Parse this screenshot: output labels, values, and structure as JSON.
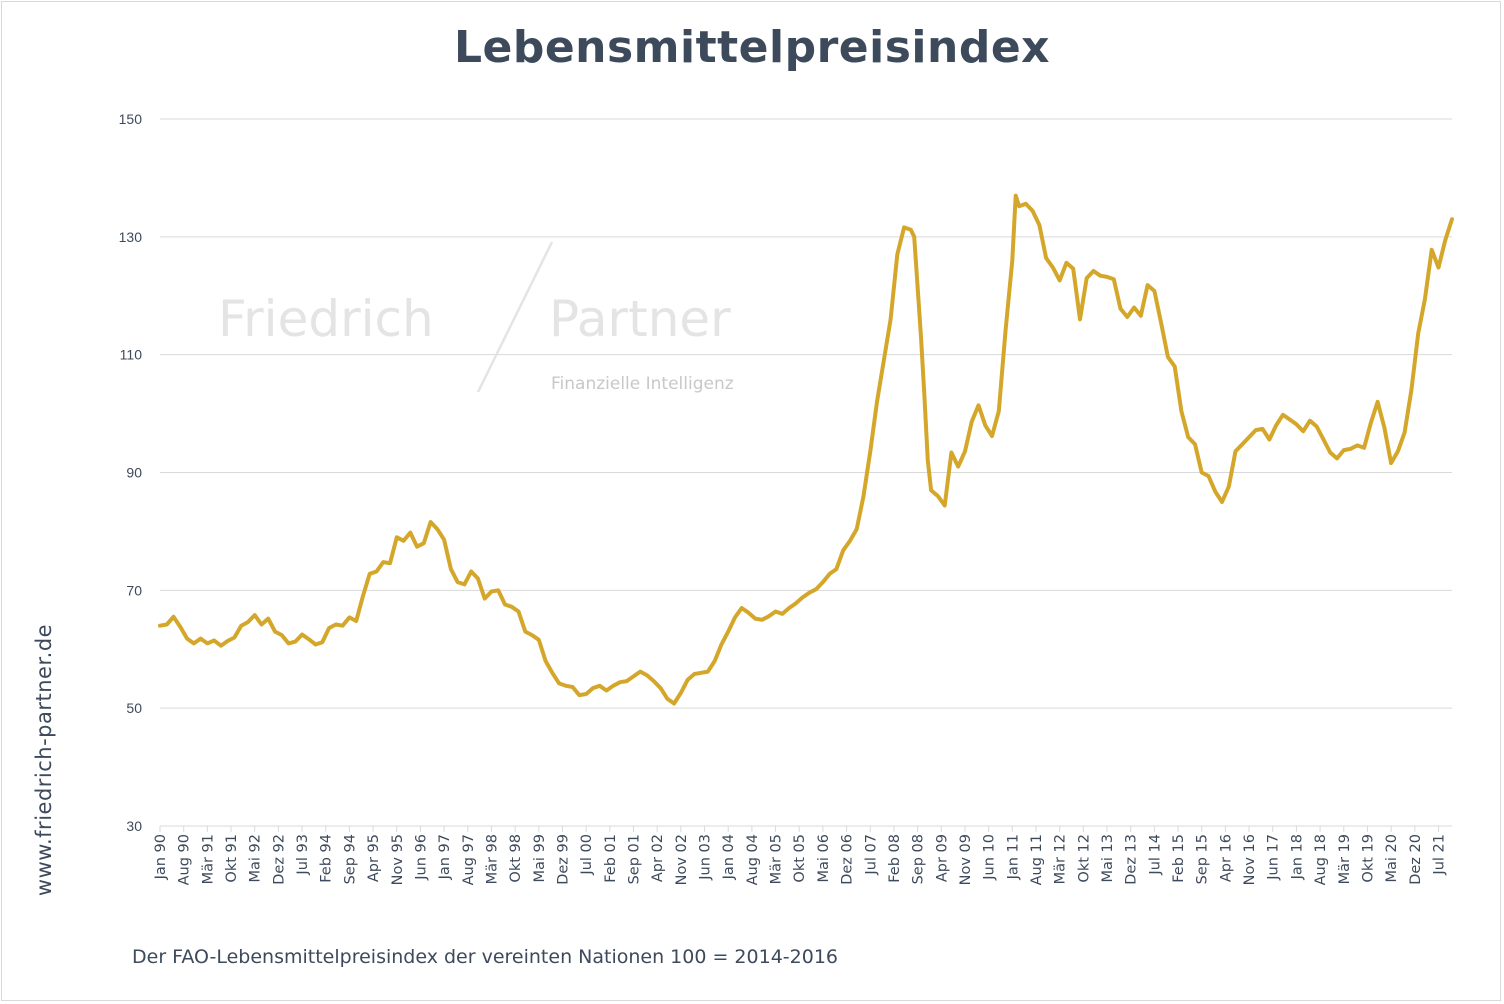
{
  "title": "Lebensmittelpreisindex",
  "side_url": "www.friedrich-partner.de",
  "footnote": "Der FAO-Lebensmittelpreisindex der vereinten Nationen 100 = 2014-2016",
  "watermark": {
    "name_left": "Friedrich",
    "name_right": "Partner",
    "tagline": "Finanzielle Intelligenz"
  },
  "colors": {
    "line": "#d4a62a",
    "grid": "#d9d9d9",
    "text": "#3d4a5c"
  },
  "chart_data": {
    "type": "line",
    "title": "Lebensmittelpreisindex",
    "xlabel": "",
    "ylabel": "",
    "ylim": [
      30,
      150
    ],
    "yticks": [
      30,
      50,
      70,
      90,
      110,
      130,
      150
    ],
    "grid": "horizontal",
    "x_start": "1990-01",
    "x_end": "2021-11",
    "x_tick_labels": [
      "Jan 90",
      "Aug 90",
      "Mär 91",
      "Okt 91",
      "Mai 92",
      "Dez 92",
      "Jul 93",
      "Feb 94",
      "Sep 94",
      "Apr 95",
      "Nov 95",
      "Jun 96",
      "Jan 97",
      "Aug 97",
      "Mär 98",
      "Okt 98",
      "Mai 99",
      "Dez 99",
      "Jul 00",
      "Feb 01",
      "Sep 01",
      "Apr 02",
      "Nov 02",
      "Jun 03",
      "Jan 04",
      "Aug 04",
      "Mär 05",
      "Okt 05",
      "Mai 06",
      "Dez 06",
      "Jul 07",
      "Feb 08",
      "Sep 08",
      "Apr 09",
      "Nov 09",
      "Jun 10",
      "Jan 11",
      "Aug 11",
      "Mär 12",
      "Okt 12",
      "Mai 13",
      "Dez 13",
      "Jul 14",
      "Feb 15",
      "Sep 15",
      "Apr 16",
      "Nov 16",
      "Jun 17",
      "Jan 18",
      "Aug 18",
      "Mär 19",
      "Okt 19",
      "Mai 20",
      "Dez 20",
      "Jul 21"
    ],
    "series": [
      {
        "points": [
          [
            "1990-01",
            64
          ],
          [
            "1990-03",
            64.2
          ],
          [
            "1990-05",
            65.5
          ],
          [
            "1990-07",
            63.8
          ],
          [
            "1990-09",
            61.8
          ],
          [
            "1990-11",
            61.0
          ],
          [
            "1991-01",
            61.8
          ],
          [
            "1991-03",
            61.0
          ],
          [
            "1991-05",
            61.5
          ],
          [
            "1991-07",
            60.6
          ],
          [
            "1991-09",
            61.4
          ],
          [
            "1991-11",
            62.0
          ],
          [
            "1992-01",
            64.0
          ],
          [
            "1992-03",
            64.6
          ],
          [
            "1992-05",
            65.8
          ],
          [
            "1992-07",
            64.2
          ],
          [
            "1992-09",
            65.2
          ],
          [
            "1992-11",
            63.0
          ],
          [
            "1993-01",
            62.4
          ],
          [
            "1993-03",
            61.0
          ],
          [
            "1993-05",
            61.3
          ],
          [
            "1993-07",
            62.5
          ],
          [
            "1993-09",
            61.7
          ],
          [
            "1993-11",
            60.8
          ],
          [
            "1994-01",
            61.2
          ],
          [
            "1994-03",
            63.6
          ],
          [
            "1994-05",
            64.2
          ],
          [
            "1994-07",
            64.0
          ],
          [
            "1994-09",
            65.4
          ],
          [
            "1994-11",
            64.8
          ],
          [
            "1995-01",
            69.0
          ],
          [
            "1995-03",
            72.8
          ],
          [
            "1995-05",
            73.2
          ],
          [
            "1995-07",
            74.8
          ],
          [
            "1995-09",
            74.6
          ],
          [
            "1995-11",
            79.0
          ],
          [
            "1996-01",
            78.4
          ],
          [
            "1996-03",
            79.8
          ],
          [
            "1996-05",
            77.4
          ],
          [
            "1996-07",
            78.0
          ],
          [
            "1996-09",
            81.6
          ],
          [
            "1996-11",
            80.4
          ],
          [
            "1997-01",
            78.6
          ],
          [
            "1997-03",
            73.6
          ],
          [
            "1997-05",
            71.4
          ],
          [
            "1997-07",
            71.0
          ],
          [
            "1997-09",
            73.2
          ],
          [
            "1997-11",
            72.0
          ],
          [
            "1998-01",
            68.6
          ],
          [
            "1998-03",
            69.8
          ],
          [
            "1998-05",
            70.0
          ],
          [
            "1998-07",
            67.6
          ],
          [
            "1998-09",
            67.2
          ],
          [
            "1998-11",
            66.4
          ],
          [
            "1999-01",
            63.0
          ],
          [
            "1999-03",
            62.4
          ],
          [
            "1999-05",
            61.6
          ],
          [
            "1999-07",
            58.0
          ],
          [
            "1999-09",
            56.0
          ],
          [
            "1999-11",
            54.2
          ],
          [
            "2000-01",
            53.8
          ],
          [
            "2000-03",
            53.6
          ],
          [
            "2000-05",
            52.2
          ],
          [
            "2000-07",
            52.4
          ],
          [
            "2000-09",
            53.4
          ],
          [
            "2000-11",
            53.8
          ],
          [
            "2001-01",
            53.0
          ],
          [
            "2001-03",
            53.8
          ],
          [
            "2001-05",
            54.4
          ],
          [
            "2001-07",
            54.6
          ],
          [
            "2001-09",
            55.4
          ],
          [
            "2001-11",
            56.2
          ],
          [
            "2002-01",
            55.6
          ],
          [
            "2002-03",
            54.6
          ],
          [
            "2002-05",
            53.4
          ],
          [
            "2002-07",
            51.6
          ],
          [
            "2002-09",
            50.8
          ],
          [
            "2002-11",
            52.6
          ],
          [
            "2003-01",
            54.8
          ],
          [
            "2003-03",
            55.8
          ],
          [
            "2003-05",
            56.0
          ],
          [
            "2003-07",
            56.2
          ],
          [
            "2003-09",
            58.0
          ],
          [
            "2003-11",
            60.8
          ],
          [
            "2004-01",
            63.0
          ],
          [
            "2004-03",
            65.4
          ],
          [
            "2004-05",
            67.0
          ],
          [
            "2004-07",
            66.2
          ],
          [
            "2004-09",
            65.2
          ],
          [
            "2004-11",
            65.0
          ],
          [
            "2005-01",
            65.6
          ],
          [
            "2005-03",
            66.4
          ],
          [
            "2005-05",
            66.0
          ],
          [
            "2005-07",
            67.0
          ],
          [
            "2005-09",
            67.8
          ],
          [
            "2005-11",
            68.8
          ],
          [
            "2006-01",
            69.6
          ],
          [
            "2006-03",
            70.2
          ],
          [
            "2006-05",
            71.4
          ],
          [
            "2006-07",
            72.8
          ],
          [
            "2006-09",
            73.6
          ],
          [
            "2006-11",
            76.8
          ],
          [
            "2007-01",
            78.4
          ],
          [
            "2007-03",
            80.4
          ],
          [
            "2007-05",
            86.0
          ],
          [
            "2007-07",
            93.6
          ],
          [
            "2007-09",
            102.0
          ],
          [
            "2007-11",
            109.0
          ],
          [
            "2008-01",
            116.0
          ],
          [
            "2008-03",
            127.0
          ],
          [
            "2008-05",
            131.6
          ],
          [
            "2008-07",
            131.2
          ],
          [
            "2008-08",
            130.0
          ],
          [
            "2008-10",
            113.0
          ],
          [
            "2008-11",
            103.0
          ],
          [
            "2008-12",
            92.0
          ],
          [
            "2009-01",
            87.0
          ],
          [
            "2009-03",
            86.0
          ],
          [
            "2009-05",
            84.4
          ],
          [
            "2009-07",
            93.4
          ],
          [
            "2009-09",
            91.0
          ],
          [
            "2009-11",
            93.6
          ],
          [
            "2010-01",
            98.6
          ],
          [
            "2010-03",
            101.4
          ],
          [
            "2010-05",
            98.0
          ],
          [
            "2010-07",
            96.2
          ],
          [
            "2010-09",
            100.4
          ],
          [
            "2010-11",
            114.0
          ],
          [
            "2011-01",
            126.0
          ],
          [
            "2011-02",
            137.0
          ],
          [
            "2011-03",
            135.2
          ],
          [
            "2011-05",
            135.6
          ],
          [
            "2011-07",
            134.4
          ],
          [
            "2011-09",
            132.0
          ],
          [
            "2011-11",
            126.4
          ],
          [
            "2012-01",
            124.8
          ],
          [
            "2012-03",
            122.6
          ],
          [
            "2012-05",
            125.6
          ],
          [
            "2012-07",
            124.6
          ],
          [
            "2012-09",
            116.0
          ],
          [
            "2012-11",
            123.0
          ],
          [
            "2013-01",
            124.2
          ],
          [
            "2013-03",
            123.4
          ],
          [
            "2013-05",
            123.2
          ],
          [
            "2013-07",
            122.8
          ],
          [
            "2013-09",
            117.8
          ],
          [
            "2013-11",
            116.4
          ],
          [
            "2014-01",
            118.0
          ],
          [
            "2014-03",
            116.6
          ],
          [
            "2014-05",
            121.8
          ],
          [
            "2014-07",
            120.8
          ],
          [
            "2014-09",
            115.4
          ],
          [
            "2014-11",
            109.6
          ],
          [
            "2015-01",
            108.0
          ],
          [
            "2015-03",
            100.4
          ],
          [
            "2015-05",
            96.0
          ],
          [
            "2015-07",
            94.8
          ],
          [
            "2015-09",
            90.0
          ],
          [
            "2015-11",
            89.4
          ],
          [
            "2016-01",
            86.8
          ],
          [
            "2016-03",
            85.0
          ],
          [
            "2016-05",
            87.6
          ],
          [
            "2016-07",
            93.6
          ],
          [
            "2016-09",
            94.8
          ],
          [
            "2016-11",
            96.0
          ],
          [
            "2017-01",
            97.2
          ],
          [
            "2017-03",
            97.4
          ],
          [
            "2017-05",
            95.6
          ],
          [
            "2017-07",
            98.0
          ],
          [
            "2017-09",
            99.8
          ],
          [
            "2017-11",
            99.0
          ],
          [
            "2018-01",
            98.2
          ],
          [
            "2018-03",
            97.0
          ],
          [
            "2018-05",
            98.8
          ],
          [
            "2018-07",
            97.8
          ],
          [
            "2018-09",
            95.6
          ],
          [
            "2018-11",
            93.4
          ],
          [
            "2019-01",
            92.4
          ],
          [
            "2019-03",
            93.8
          ],
          [
            "2019-05",
            94.0
          ],
          [
            "2019-07",
            94.6
          ],
          [
            "2019-09",
            94.2
          ],
          [
            "2019-11",
            98.4
          ],
          [
            "2020-01",
            102.0
          ],
          [
            "2020-03",
            97.6
          ],
          [
            "2020-05",
            91.6
          ],
          [
            "2020-07",
            93.6
          ],
          [
            "2020-09",
            96.8
          ],
          [
            "2020-11",
            104.0
          ],
          [
            "2021-01",
            113.6
          ],
          [
            "2021-03",
            119.4
          ],
          [
            "2021-05",
            127.8
          ],
          [
            "2021-07",
            124.8
          ],
          [
            "2021-09",
            129.4
          ],
          [
            "2021-11",
            133.0
          ]
        ]
      }
    ]
  }
}
